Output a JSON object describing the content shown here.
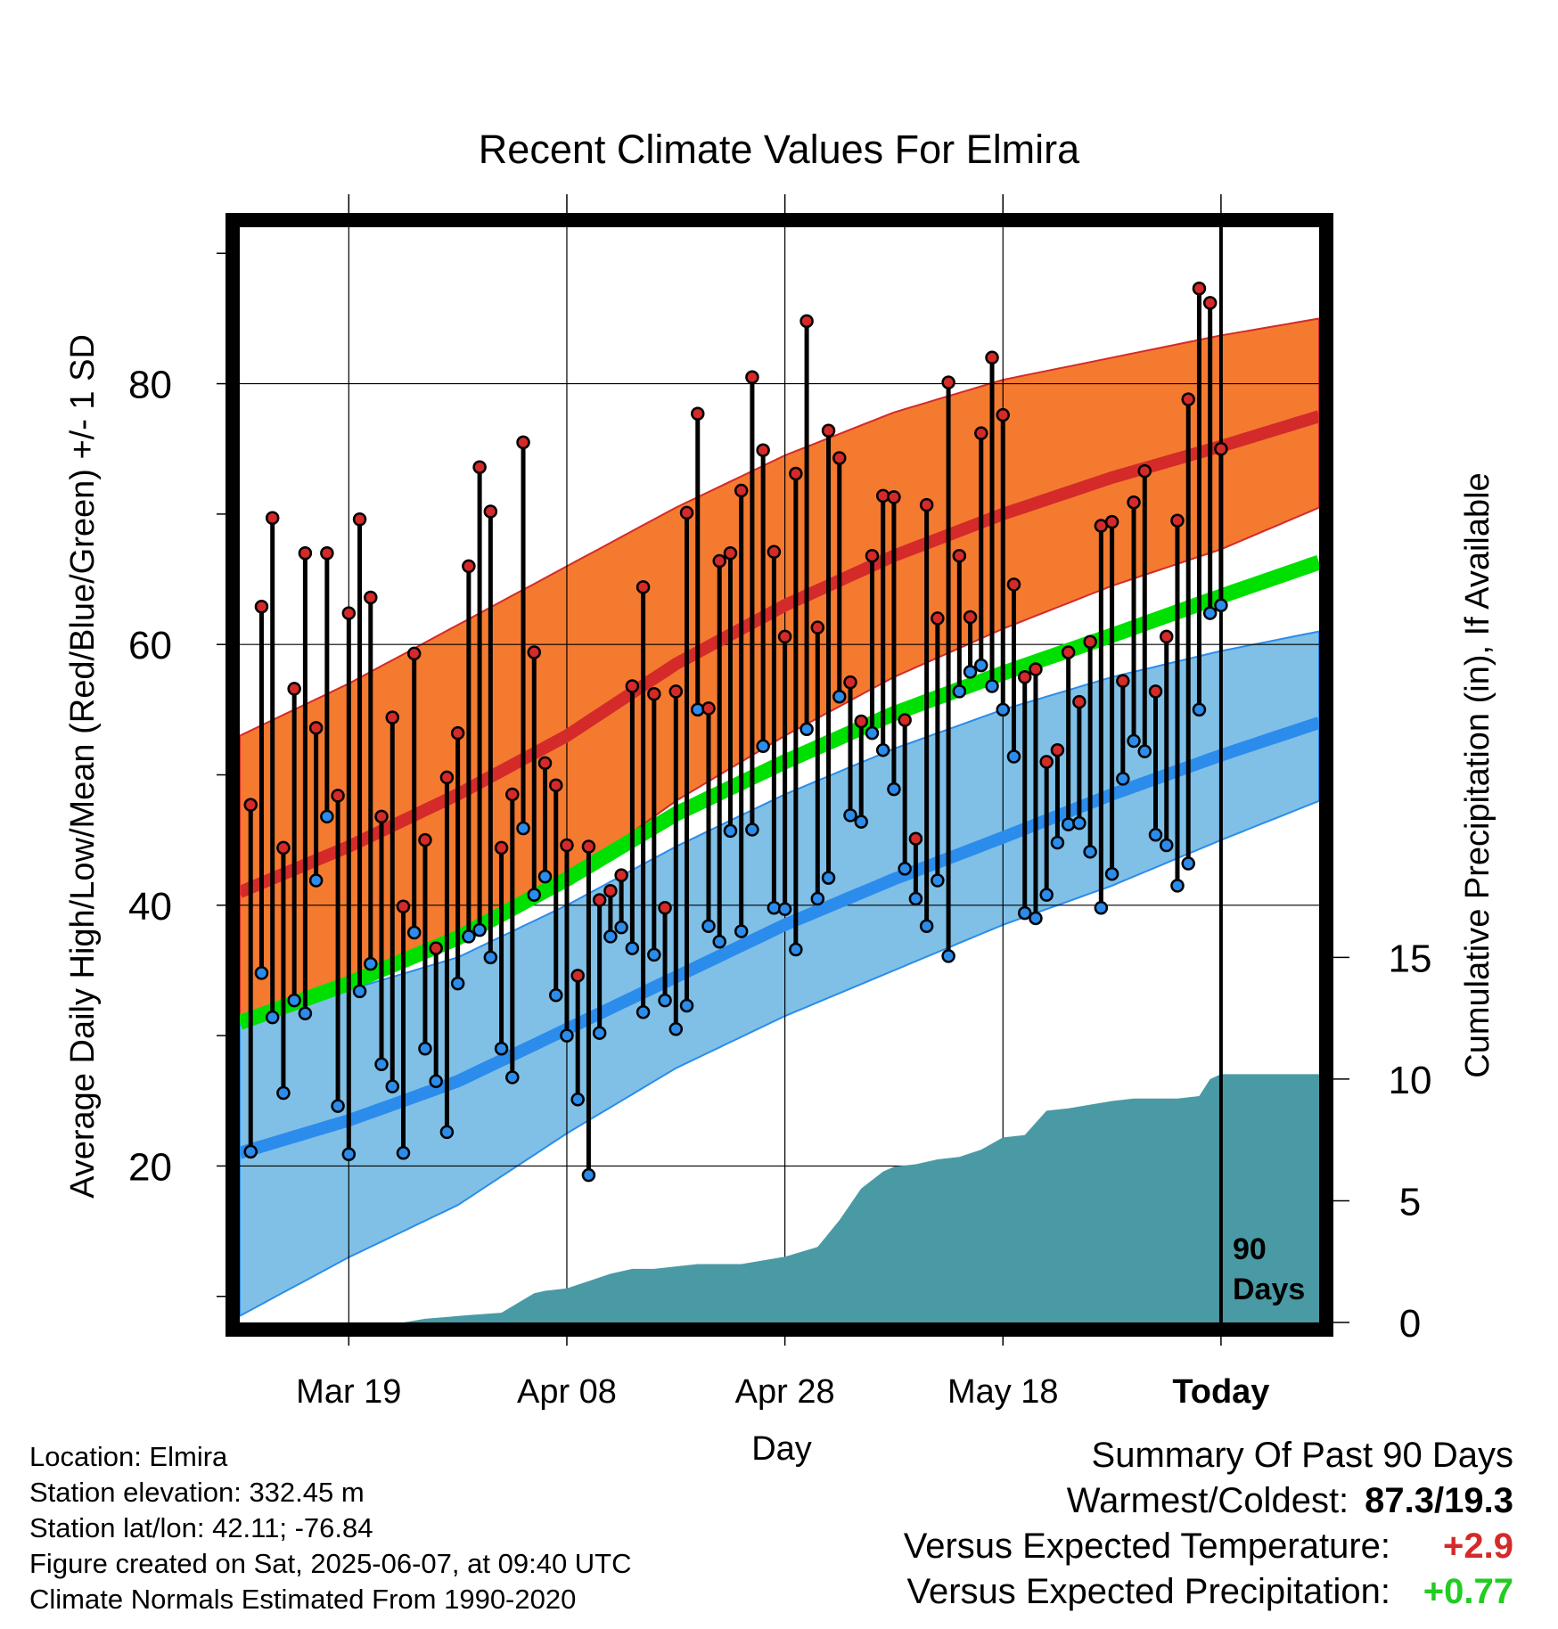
{
  "chart_data": {
    "type": "line",
    "title": "Recent Climate Values For Elmira",
    "xlabel": "Day",
    "ylabel": "Average Daily High/Low/Mean (Red/Blue/Green) +/- 1 SD",
    "y2label": "Cumulative Precipitation (in), If Available",
    "ylim": [
      8,
      92
    ],
    "y2lim": [
      0,
      45
    ],
    "xlim": [
      -90,
      9
    ],
    "x_ticks": [
      {
        "day": -80,
        "label": "Mar 19"
      },
      {
        "day": -60,
        "label": "Apr 08"
      },
      {
        "day": -40,
        "label": "Apr 28"
      },
      {
        "day": -20,
        "label": "May 18"
      },
      {
        "day": 0,
        "label": "Today"
      }
    ],
    "y_ticks": [
      20,
      40,
      60,
      80
    ],
    "y2_ticks": [
      0,
      5,
      10,
      15
    ],
    "today_marker_label": [
      "90",
      "Days"
    ],
    "grid": true,
    "normals": {
      "x": [
        -90,
        -80,
        -70,
        -60,
        -50,
        -40,
        -30,
        -20,
        -10,
        0,
        9
      ],
      "high_mean": [
        41.0,
        44.5,
        48.5,
        53.0,
        58.5,
        63.0,
        66.8,
        70.0,
        72.8,
        75.2,
        77.5
      ],
      "high_plus_sd": [
        53.0,
        57.0,
        61.5,
        66.0,
        70.5,
        74.5,
        77.8,
        80.3,
        82.0,
        83.7,
        85.0
      ],
      "high_minus_sd": [
        31.0,
        34.0,
        37.5,
        42.0,
        48.0,
        53.0,
        57.5,
        61.2,
        64.5,
        67.3,
        70.5
      ],
      "mean_mean": [
        31.0,
        34.0,
        37.5,
        42.0,
        47.0,
        51.0,
        54.7,
        57.8,
        60.7,
        63.7,
        66.3
      ],
      "low_mean": [
        21.0,
        23.5,
        26.5,
        30.5,
        34.5,
        38.5,
        42.0,
        45.2,
        48.5,
        51.5,
        54.0
      ],
      "low_plus_sd": [
        31.0,
        33.5,
        36.0,
        40.0,
        44.5,
        48.5,
        52.0,
        55.0,
        57.5,
        59.5,
        61.0
      ],
      "low_minus_sd": [
        8.5,
        13.0,
        17.0,
        22.5,
        27.5,
        31.5,
        35.0,
        38.5,
        41.5,
        45.0,
        48.0
      ]
    },
    "series": [
      {
        "name": "High",
        "color": "#d42a2a",
        "values": [
          47.7,
          62.9,
          69.7,
          44.4,
          56.6,
          67.0,
          53.6,
          67.0,
          48.4,
          62.4,
          69.6,
          63.6,
          46.8,
          54.4,
          39.9,
          59.3,
          45.0,
          36.7,
          49.8,
          53.2,
          66.0,
          73.6,
          70.2,
          44.4,
          48.5,
          75.5,
          59.4,
          50.9,
          49.2,
          44.6,
          34.6,
          44.5,
          40.4,
          41.1,
          42.3,
          56.8,
          64.4,
          56.2,
          39.8,
          56.4,
          70.1,
          77.7,
          55.1,
          66.4,
          67.0,
          71.8,
          80.5,
          74.9,
          67.1,
          60.6,
          73.1,
          84.8,
          61.3,
          76.4,
          74.3,
          57.1,
          54.1,
          66.8,
          71.4,
          71.3,
          54.2,
          45.1,
          70.7,
          62.0,
          80.1,
          66.8,
          62.1,
          76.2,
          82.0,
          77.6,
          64.6,
          57.5,
          58.1,
          51.0,
          51.9,
          59.4,
          55.6,
          60.2,
          69.1,
          69.4,
          57.2,
          70.9,
          73.3,
          56.4,
          60.6,
          69.5,
          78.8,
          87.3,
          86.2,
          75.0
        ]
      },
      {
        "name": "Low",
        "color": "#2b8cec",
        "values": [
          21.1,
          34.8,
          31.4,
          25.6,
          32.7,
          31.7,
          41.9,
          46.8,
          24.6,
          20.9,
          33.4,
          35.5,
          27.8,
          26.1,
          21.0,
          37.9,
          29.0,
          26.5,
          22.6,
          34.0,
          37.6,
          38.1,
          36.0,
          29.0,
          26.8,
          45.9,
          40.8,
          42.2,
          33.1,
          30.0,
          25.1,
          19.3,
          30.2,
          37.6,
          38.3,
          36.7,
          31.8,
          36.2,
          32.7,
          30.5,
          32.3,
          55.0,
          38.4,
          37.2,
          45.7,
          38.0,
          45.8,
          52.2,
          39.8,
          39.7,
          36.6,
          53.5,
          40.5,
          42.1,
          56.0,
          46.9,
          46.4,
          53.2,
          51.9,
          48.9,
          42.8,
          40.5,
          38.4,
          41.9,
          36.1,
          56.4,
          57.9,
          58.4,
          56.8,
          55.0,
          51.4,
          39.4,
          39.0,
          40.8,
          44.8,
          46.2,
          46.3,
          44.1,
          39.8,
          42.4,
          49.7,
          52.6,
          51.8,
          45.4,
          44.6,
          41.5,
          43.2,
          55.0,
          62.4,
          63.0
        ]
      },
      {
        "name": "Cumulative Precipitation",
        "color": "#4a9aa5",
        "x": [
          -90,
          -75,
          -73,
          -69,
          -66,
          -63,
          -62,
          -60,
          -58,
          -56,
          -54,
          -52,
          -48,
          -44,
          -40,
          -37,
          -35,
          -33,
          -31,
          -30,
          -28,
          -26,
          -24,
          -22,
          -20,
          -18,
          -16,
          -14,
          -10,
          -8,
          -4,
          -2,
          -1,
          0,
          9
        ],
        "values": [
          0,
          0,
          0.15,
          0.3,
          0.4,
          1.2,
          1.3,
          1.4,
          1.7,
          2.0,
          2.2,
          2.2,
          2.4,
          2.4,
          2.7,
          3.1,
          4.2,
          5.5,
          6.2,
          6.4,
          6.5,
          6.7,
          6.8,
          7.1,
          7.6,
          7.7,
          8.7,
          8.8,
          9.1,
          9.2,
          9.2,
          9.3,
          10.0,
          10.2,
          10.2
        ]
      }
    ],
    "legend": {
      "location": "Location: Elmira",
      "elevation": "Station elevation: 332.45 m",
      "latlon": "Station lat/lon: 42.11; -76.84",
      "created": "Figure created on Sat, 2025-06-07, at 09:40 UTC",
      "normals_period": "Climate Normals Estimated From 1990-2020"
    },
    "summary": {
      "title": "Summary Of Past 90 Days",
      "warmest_label": "Warmest/Coldest:",
      "warmest_value": "87.3/19.3",
      "temp_label": "Versus Expected Temperature:",
      "temp_value": "+2.9",
      "temp_color": "#d42a2a",
      "precip_label": "Versus Expected Precipitation:",
      "precip_value": "+0.77",
      "precip_color": "#22cc22"
    },
    "colors": {
      "high_band": "#f47a30",
      "high_line": "#d42a2a",
      "low_band": "#80c0e6",
      "low_line": "#2b8cec",
      "mean_line": "#00e000",
      "precip_fill": "#4a9aa5"
    }
  }
}
